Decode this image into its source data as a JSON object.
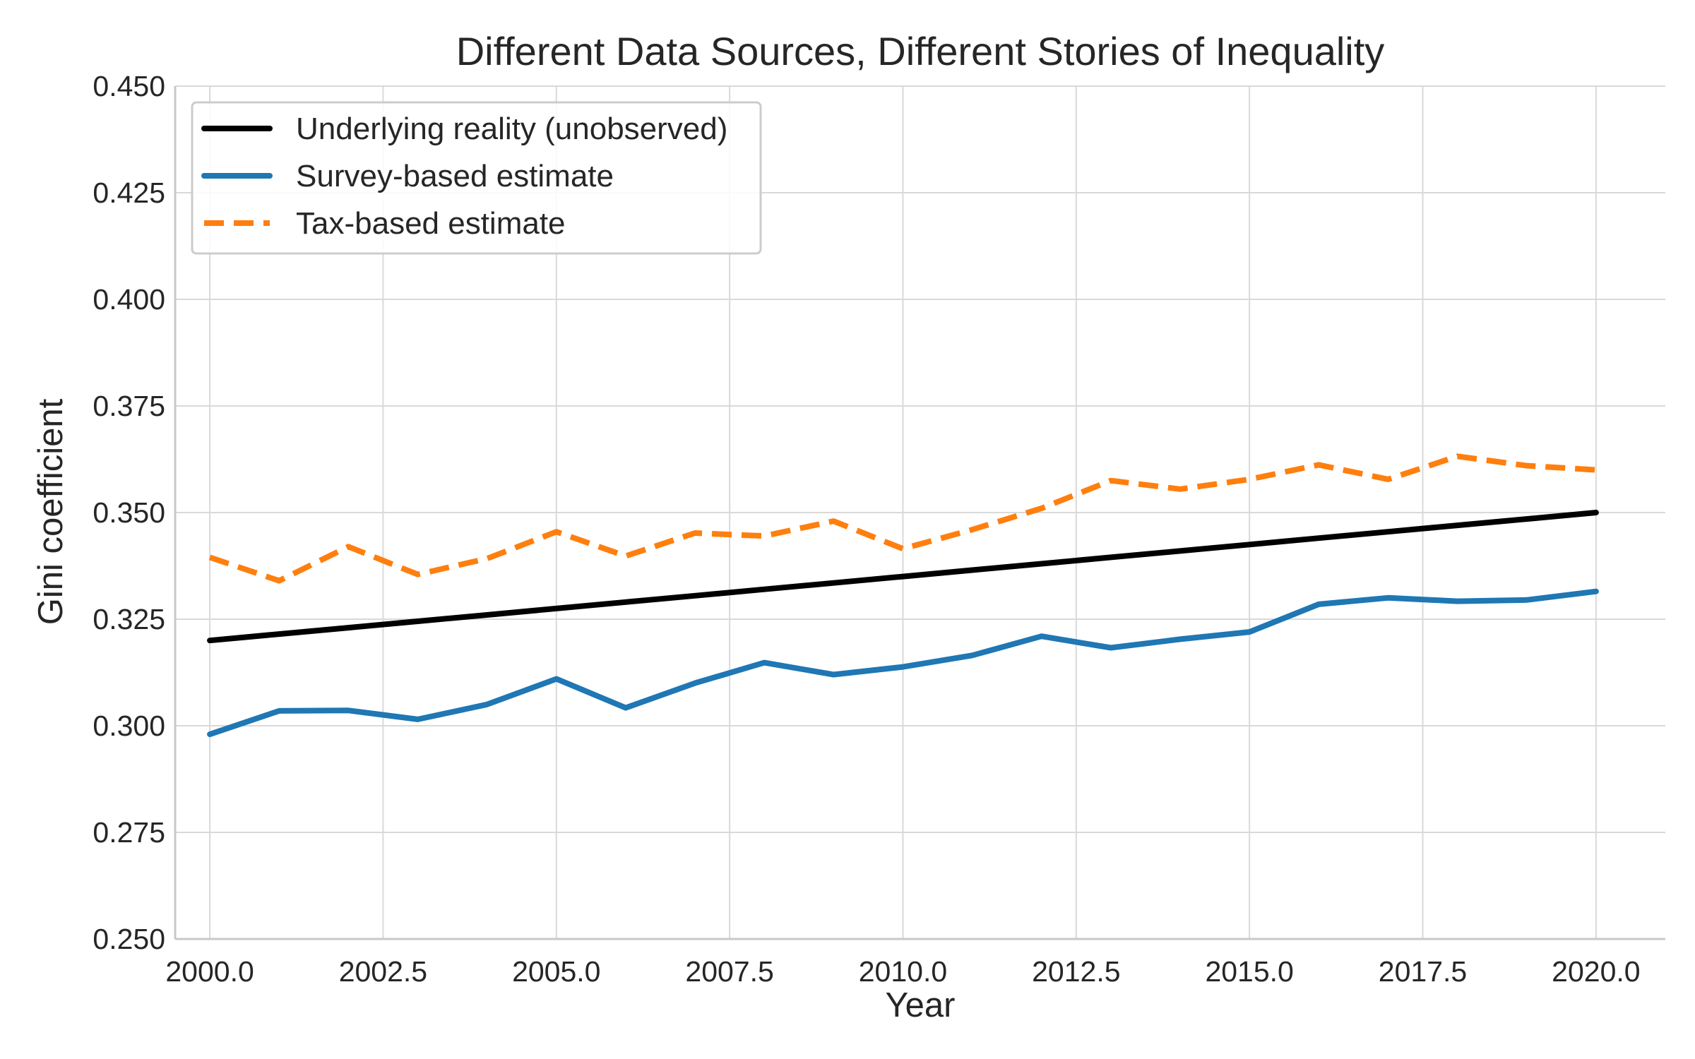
{
  "chart_data": {
    "type": "line",
    "title": "Different Data Sources, Different Stories of Inequality",
    "xlabel": "Year",
    "ylabel": "Gini coefficient",
    "xlim": [
      1999.5,
      2021
    ],
    "ylim": [
      0.25,
      0.45
    ],
    "xticks": [
      2000.0,
      2002.5,
      2005.0,
      2007.5,
      2010.0,
      2012.5,
      2015.0,
      2017.5,
      2020.0
    ],
    "xtick_labels": [
      "2000.0",
      "2002.5",
      "2005.0",
      "2007.5",
      "2010.0",
      "2012.5",
      "2015.0",
      "2017.5",
      "2020.0"
    ],
    "yticks": [
      0.25,
      0.275,
      0.3,
      0.325,
      0.35,
      0.375,
      0.4,
      0.425,
      0.45
    ],
    "ytick_labels": [
      "0.250",
      "0.275",
      "0.300",
      "0.325",
      "0.350",
      "0.375",
      "0.400",
      "0.425",
      "0.450"
    ],
    "grid": true,
    "legend_position": "upper-left",
    "x": [
      2000,
      2001,
      2002,
      2003,
      2004,
      2005,
      2006,
      2007,
      2008,
      2009,
      2010,
      2011,
      2012,
      2013,
      2014,
      2015,
      2016,
      2017,
      2018,
      2019,
      2020
    ],
    "series": [
      {
        "name": "Underlying reality (unobserved)",
        "color": "#000000",
        "dash": "solid",
        "values": [
          0.32,
          0.3215,
          0.323,
          0.3245,
          0.326,
          0.3275,
          0.329,
          0.3305,
          0.332,
          0.3335,
          0.335,
          0.3365,
          0.338,
          0.3395,
          0.341,
          0.3425,
          0.344,
          0.3455,
          0.347,
          0.3485,
          0.35
        ]
      },
      {
        "name": "Survey-based estimate",
        "color": "#1f77b4",
        "dash": "solid",
        "values": [
          0.298,
          0.3035,
          0.3036,
          0.3015,
          0.305,
          0.311,
          0.3042,
          0.31,
          0.3148,
          0.312,
          0.3138,
          0.3165,
          0.321,
          0.3183,
          0.3203,
          0.322,
          0.3285,
          0.33,
          0.3292,
          0.3295,
          0.3315
        ]
      },
      {
        "name": "Tax-based estimate",
        "color": "#ff7f0e",
        "dash": "dashed",
        "values": [
          0.3395,
          0.334,
          0.342,
          0.3355,
          0.3392,
          0.3455,
          0.3398,
          0.3452,
          0.3445,
          0.348,
          0.3415,
          0.346,
          0.351,
          0.3575,
          0.3555,
          0.3578,
          0.3612,
          0.3578,
          0.3632,
          0.361,
          0.36
        ]
      }
    ]
  }
}
